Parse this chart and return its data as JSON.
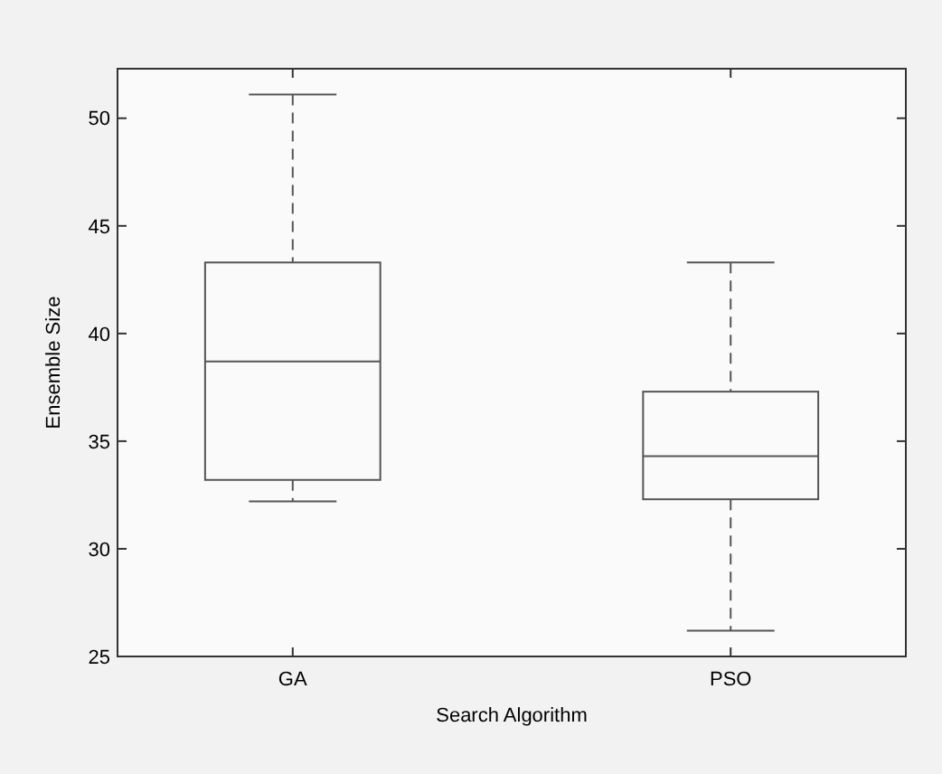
{
  "chart_data": {
    "type": "box",
    "xlabel": "Search Algorithm",
    "ylabel": "Ensemble Size",
    "categories": [
      "GA",
      "PSO"
    ],
    "boxes": [
      {
        "low": 32.2,
        "q1": 33.2,
        "median": 38.7,
        "q3": 43.3,
        "high": 51.1
      },
      {
        "low": 26.2,
        "q1": 32.3,
        "median": 34.3,
        "q3": 37.3,
        "high": 43.3
      }
    ],
    "ylim": [
      25,
      52.3
    ],
    "yticks": [
      25,
      30,
      35,
      40,
      45,
      50
    ],
    "color": "#555555",
    "line_style": "dashed"
  }
}
